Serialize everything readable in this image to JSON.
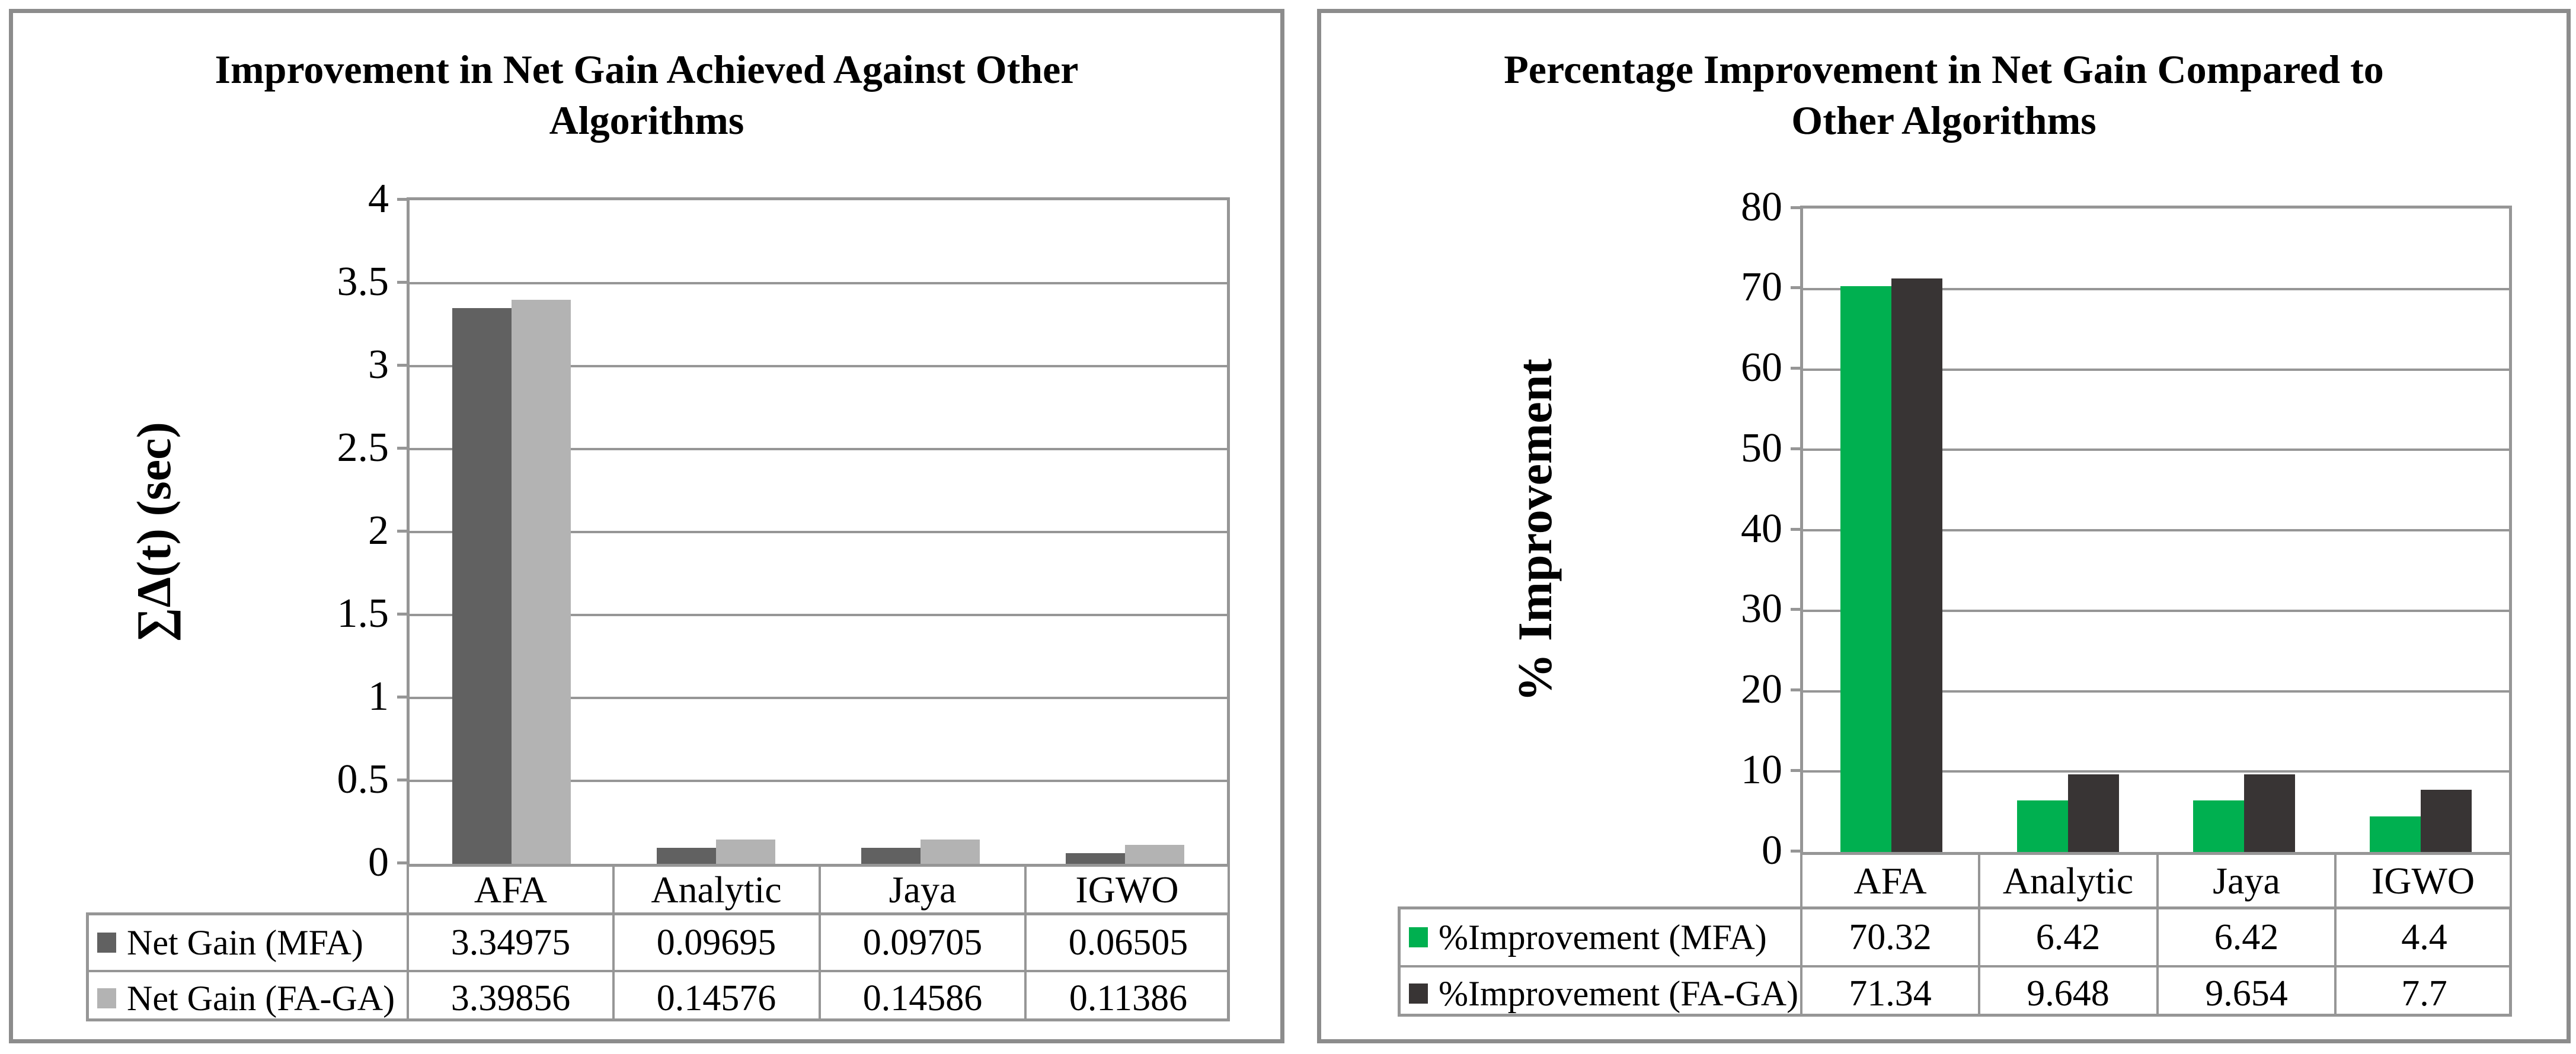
{
  "chart_data": [
    {
      "type": "bar",
      "title": "Improvement in Net Gain Achieved Against Other Algorithms",
      "title_lines": [
        "Improvement in Net Gain Achieved Against Other",
        "Algorithms"
      ],
      "ylabel": "∑Δ(t) (sec)",
      "xlabel": "",
      "ylim": [
        0,
        4
      ],
      "ytick_step": 0.5,
      "yticks_top_down": [
        "4",
        "3.5",
        "3",
        "2.5",
        "2",
        "1.5",
        "1",
        "0.5",
        "0"
      ],
      "grid": true,
      "legend_position": "data-table-below",
      "categories": [
        "AFA",
        "Analytic",
        "Jaya",
        "IGWO"
      ],
      "series": [
        {
          "name": "Net Gain (MFA)",
          "color": "#616161",
          "values": [
            3.34975,
            0.09695,
            0.09705,
            0.06505
          ],
          "value_labels": [
            "3.34975",
            "0.09695",
            "0.09705",
            "0.06505"
          ]
        },
        {
          "name": "Net Gain (FA-GA)",
          "color": "#B3B3B3",
          "values": [
            3.39856,
            0.14576,
            0.14586,
            0.11386
          ],
          "value_labels": [
            "3.39856",
            "0.14576",
            "0.14586",
            "0.11386"
          ]
        }
      ]
    },
    {
      "type": "bar",
      "title": "Percentage Improvement in Net Gain Compared to Other Algorithms",
      "title_lines": [
        "Percentage Improvement in Net Gain Compared to",
        "Other Algorithms"
      ],
      "ylabel": "% Improvement",
      "xlabel": "",
      "ylim": [
        0,
        80
      ],
      "ytick_step": 10,
      "yticks_top_down": [
        "80",
        "70",
        "60",
        "50",
        "40",
        "30",
        "20",
        "10",
        "0"
      ],
      "grid": true,
      "legend_position": "data-table-below",
      "categories": [
        "AFA",
        "Analytic",
        "Jaya",
        "IGWO"
      ],
      "series": [
        {
          "name": "%Improvement (MFA)",
          "color": "#00B050",
          "values": [
            70.32,
            6.42,
            6.42,
            4.4
          ],
          "value_labels": [
            "70.32",
            "6.42",
            "6.42",
            "4.4"
          ]
        },
        {
          "name": "%Improvement (FA-GA)",
          "color": "#383434",
          "values": [
            71.34,
            9.648,
            9.654,
            7.7
          ],
          "value_labels": [
            "71.34",
            "9.648",
            "9.654",
            "7.7"
          ]
        }
      ]
    }
  ],
  "border_colors": {
    "panel_frame": "#8c8c8c",
    "grid_and_table": "#969696"
  }
}
